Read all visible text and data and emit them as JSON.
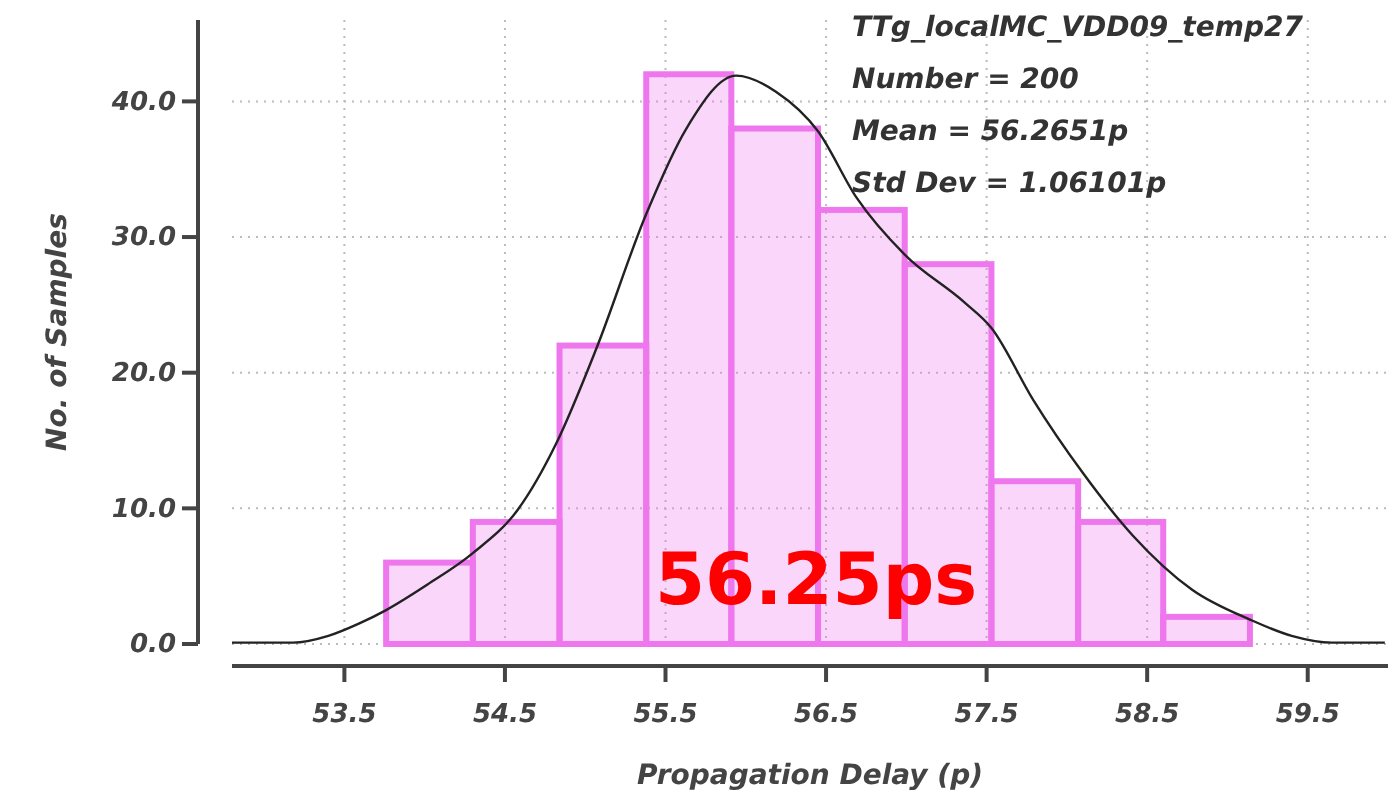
{
  "chart_data": {
    "type": "histogram",
    "xlabel": "Propagation Delay (p)",
    "ylabel": "No. of Samples",
    "bins": [
      53.76,
      54.3,
      54.84,
      55.38,
      55.91,
      56.45,
      56.99,
      57.53,
      58.07,
      58.6,
      59.14
    ],
    "series": [
      {
        "color": "#ee77ee",
        "values": [
          6,
          9,
          22,
          42,
          38,
          32,
          28,
          12,
          9,
          2
        ]
      },
      {
        "type": "line",
        "color": "#222222",
        "x": [
          52.8,
          53.18,
          53.4,
          53.59,
          53.76,
          54.02,
          54.3,
          54.58,
          54.82,
          55.07,
          55.38,
          55.63,
          55.94,
          56.19,
          56.45,
          56.69,
          56.99,
          57.36,
          57.53,
          57.79,
          58.1,
          58.41,
          58.78,
          59.14,
          59.4,
          59.65,
          59.98
        ],
        "values": [
          0.1,
          0.1,
          0.6,
          1.5,
          2.5,
          4.4,
          6.7,
          9.9,
          14.8,
          21.8,
          31.7,
          38,
          41.9,
          40.7,
          37.8,
          32.9,
          28.7,
          25.2,
          23.3,
          18,
          12.6,
          8,
          4,
          1.8,
          0.6,
          0.1,
          0.1
        ]
      }
    ],
    "xlim": [
      52.8,
      60.0
    ],
    "ylim": [
      0,
      46
    ],
    "xticks": [
      53.5,
      54.5,
      55.5,
      56.5,
      57.5,
      58.5,
      59.5
    ],
    "yticks": [
      {
        "value": 0,
        "label": "0.0"
      },
      {
        "value": 10,
        "label": "10.0"
      },
      {
        "value": 20,
        "label": "20.0"
      },
      {
        "value": 30,
        "label": "30.0"
      },
      {
        "value": 40,
        "label": "40.0"
      }
    ],
    "grid": true,
    "marker": "none",
    "annotations": [
      "TTg_localMC_VDD09_temp27",
      "Number = 200",
      "Mean = 56.2651p",
      "Std Dev = 1.06101p",
      "56.25ps"
    ]
  }
}
